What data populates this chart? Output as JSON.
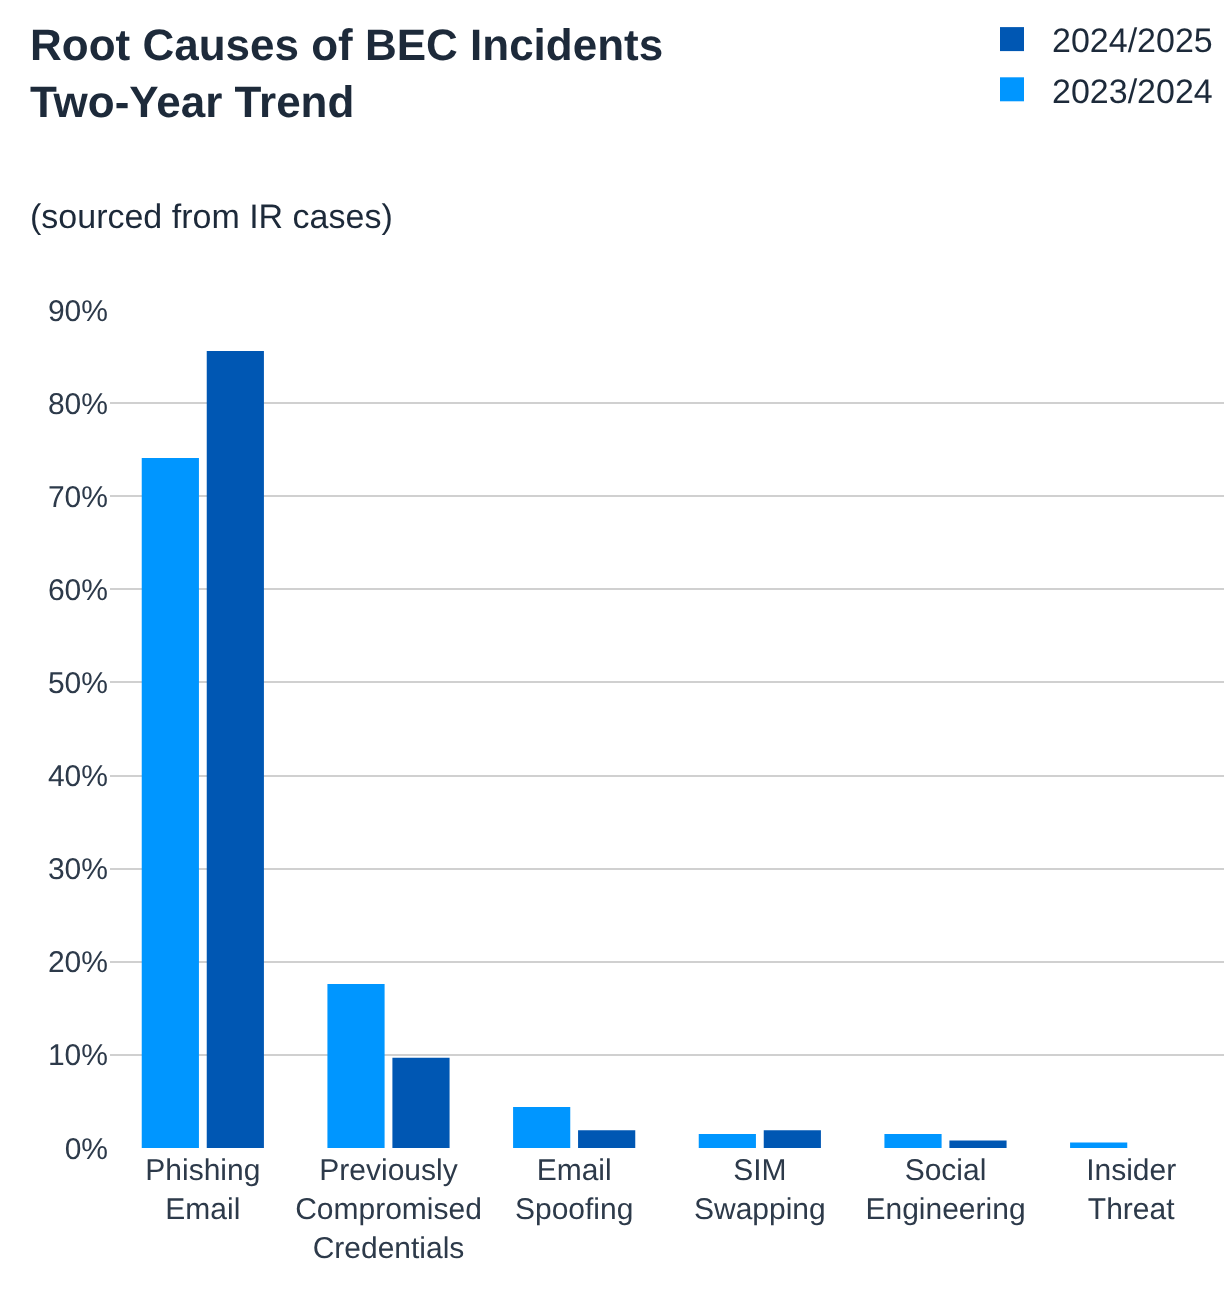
{
  "chart_data": {
    "type": "bar",
    "title": "Root Causes of BEC Incidents\nTwo-Year Trend",
    "subtitle": "(sourced from IR cases)",
    "categories": [
      "Phishing Email",
      "Previously Compromised Credentials",
      "Email Spoofing",
      "SIM Swapping",
      "Social Engineering",
      "Insider Threat"
    ],
    "series": [
      {
        "name": "2023/2024",
        "color": "#0096ff",
        "values": [
          74.1,
          17.6,
          4.4,
          1.5,
          1.5,
          0.6
        ]
      },
      {
        "name": "2024/2025",
        "color": "#0057b3",
        "values": [
          85.6,
          9.7,
          1.9,
          1.9,
          0.8,
          0
        ]
      }
    ],
    "ylim": [
      0,
      90
    ],
    "yticks": [
      {
        "value": 0,
        "label": "0%"
      },
      {
        "value": 10,
        "label": "10%"
      },
      {
        "value": 20,
        "label": "20%"
      },
      {
        "value": 30,
        "label": "30%"
      },
      {
        "value": 40,
        "label": "40%"
      },
      {
        "value": 50,
        "label": "50%"
      },
      {
        "value": 60,
        "label": "60%"
      },
      {
        "value": 70,
        "label": "70%"
      },
      {
        "value": 80,
        "label": "80%"
      },
      {
        "value": 90,
        "label": "90%"
      }
    ],
    "grid": "y",
    "legend": "top right"
  }
}
